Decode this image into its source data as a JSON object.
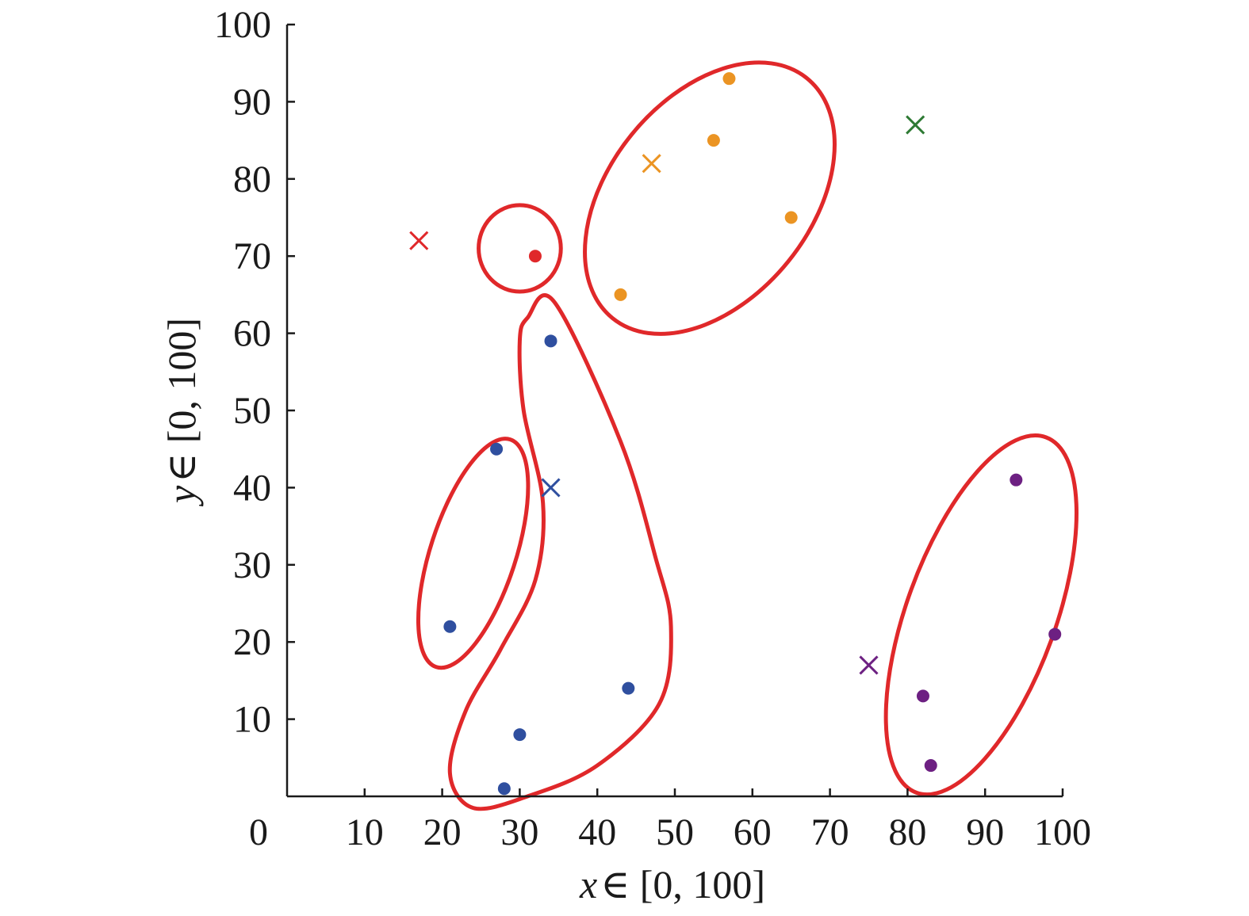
{
  "chart_data": {
    "type": "scatter",
    "title": "",
    "xlabel_var": "x",
    "xlabel_rest": "∈ [0, 100]",
    "ylabel_var": "y",
    "ylabel_rest": "∈ [0, 100]",
    "xlim": [
      0,
      100
    ],
    "ylim": [
      0,
      100
    ],
    "xticks": [
      0,
      10,
      20,
      30,
      40,
      50,
      60,
      70,
      80,
      90,
      100
    ],
    "yticks": [
      10,
      20,
      30,
      40,
      50,
      60,
      70,
      80,
      90,
      100
    ],
    "grid": false,
    "points": [
      {
        "x": 32,
        "y": 70,
        "group": "red"
      },
      {
        "x": 43,
        "y": 65,
        "group": "orange"
      },
      {
        "x": 55,
        "y": 85,
        "group": "orange"
      },
      {
        "x": 57,
        "y": 93,
        "group": "orange"
      },
      {
        "x": 65,
        "y": 75,
        "group": "orange"
      },
      {
        "x": 34,
        "y": 59,
        "group": "blue"
      },
      {
        "x": 27,
        "y": 45,
        "group": "blue"
      },
      {
        "x": 21,
        "y": 22,
        "group": "blue"
      },
      {
        "x": 44,
        "y": 14,
        "group": "blue"
      },
      {
        "x": 30,
        "y": 8,
        "group": "blue"
      },
      {
        "x": 28,
        "y": 1,
        "group": "blue"
      },
      {
        "x": 94,
        "y": 41,
        "group": "purple"
      },
      {
        "x": 99,
        "y": 21,
        "group": "purple"
      },
      {
        "x": 82,
        "y": 13,
        "group": "purple"
      },
      {
        "x": 83,
        "y": 4,
        "group": "purple"
      }
    ],
    "crosses": [
      {
        "x": 17,
        "y": 72,
        "group": "red"
      },
      {
        "x": 47,
        "y": 82,
        "group": "orange"
      },
      {
        "x": 81,
        "y": 87,
        "group": "green"
      },
      {
        "x": 34,
        "y": 40,
        "group": "blue"
      },
      {
        "x": 75,
        "y": 17,
        "group": "purple"
      }
    ],
    "outlines": [
      {
        "kind": "ellipse",
        "cx": 30,
        "cy": 71,
        "rx": 5.3,
        "ry": 5.6,
        "angle": 0
      },
      {
        "kind": "ellipse",
        "cx": 54.5,
        "cy": 77.5,
        "rx": 13,
        "ry": 20,
        "angle": 39
      },
      {
        "kind": "ellipse",
        "cx": 24,
        "cy": 31.5,
        "rx": 5.5,
        "ry": 15.5,
        "angle": 18
      },
      {
        "kind": "ellipse",
        "cx": 89.5,
        "cy": 23.5,
        "rx": 9.6,
        "ry": 24.5,
        "angle": 20
      },
      {
        "kind": "path",
        "points": [
          [
            31,
            62
          ],
          [
            34.5,
            64
          ],
          [
            43,
            46
          ],
          [
            47.5,
            31
          ],
          [
            49.5,
            22
          ],
          [
            48,
            12
          ],
          [
            40,
            4
          ],
          [
            31,
            0
          ],
          [
            24,
            -1.5
          ],
          [
            21,
            3
          ],
          [
            23,
            11
          ],
          [
            27.5,
            19
          ],
          [
            32,
            28
          ],
          [
            33,
            38
          ],
          [
            30.5,
            50
          ],
          [
            30,
            59
          ]
        ]
      }
    ],
    "colors": {
      "red": "#e0282a",
      "orange": "#eb9423",
      "green": "#2e7a34",
      "blue": "#2f4f9f",
      "purple": "#6d2082",
      "outline": "#e0282a"
    }
  }
}
